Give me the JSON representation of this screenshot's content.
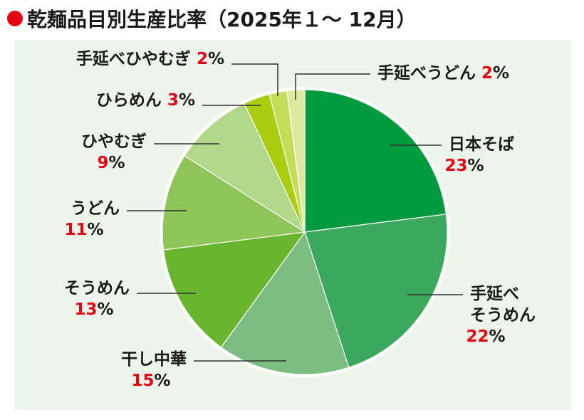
{
  "header": {
    "title": "乾麺品目別生産比率（2025年１～ 12月）"
  },
  "chart_data": {
    "type": "pie",
    "title": "乾麺品目別生産比率（2025年１～ 12月）",
    "start": "top",
    "direction": "clockwise",
    "unit": "%",
    "slices": [
      {
        "name": "日本そば",
        "lines": [
          "日本そば"
        ],
        "value": 23,
        "color": "#009a3e"
      },
      {
        "name": "手延べそうめん",
        "lines": [
          "手延べ",
          "そうめん"
        ],
        "value": 22,
        "color": "#3ba85c"
      },
      {
        "name": "干し中華",
        "lines": [
          "干し中華"
        ],
        "value": 15,
        "color": "#7cbd82"
      },
      {
        "name": "そうめん",
        "lines": [
          "そうめん"
        ],
        "value": 13,
        "color": "#6ab52e"
      },
      {
        "name": "うどん",
        "lines": [
          "うどん"
        ],
        "value": 11,
        "color": "#8dc556"
      },
      {
        "name": "ひやむぎ",
        "lines": [
          "ひやむぎ"
        ],
        "value": 9,
        "color": "#b1d88a"
      },
      {
        "name": "ひらめん",
        "lines": [
          "ひらめん"
        ],
        "value": 3,
        "color": "#aacd0f"
      },
      {
        "name": "手延べひやむぎ",
        "lines": [
          "手延べひやむぎ"
        ],
        "value": 2,
        "color": "#c5dc58"
      },
      {
        "name": "手延べうどん",
        "lines": [
          "手延べうどん"
        ],
        "value": 2,
        "color": "#dde9a0"
      }
    ]
  }
}
